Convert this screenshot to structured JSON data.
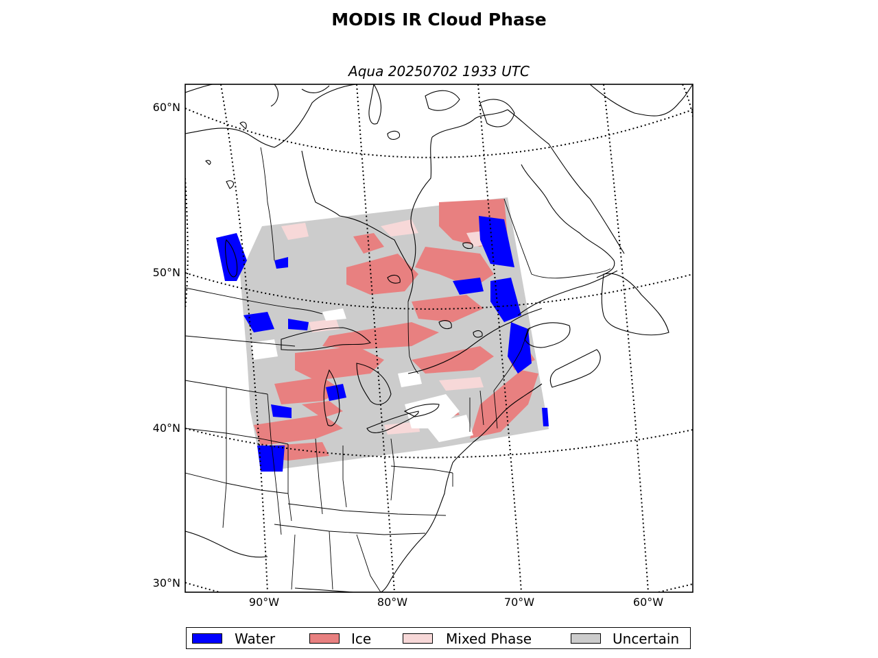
{
  "title": "MODIS IR Cloud Phase",
  "subtitle": "Aqua 20250702 1933 UTC",
  "lat_labels": [
    "60°N",
    "50°N",
    "40°N",
    "30°N"
  ],
  "lon_labels": [
    "90°W",
    "80°W",
    "70°W",
    "60°W"
  ],
  "legend": [
    {
      "label": "Water",
      "color": "#0000ff"
    },
    {
      "label": "Ice",
      "color": "#e88080"
    },
    {
      "label": "Mixed Phase",
      "color": "#f7d8d8"
    },
    {
      "label": "Uncertain",
      "color": "#cccccc"
    }
  ],
  "colors": {
    "water": "#0000ff",
    "ice": "#e88080",
    "mixed": "#f7d8d8",
    "uncertain": "#cccccc",
    "coastline": "#000000",
    "graticule": "#000000"
  }
}
